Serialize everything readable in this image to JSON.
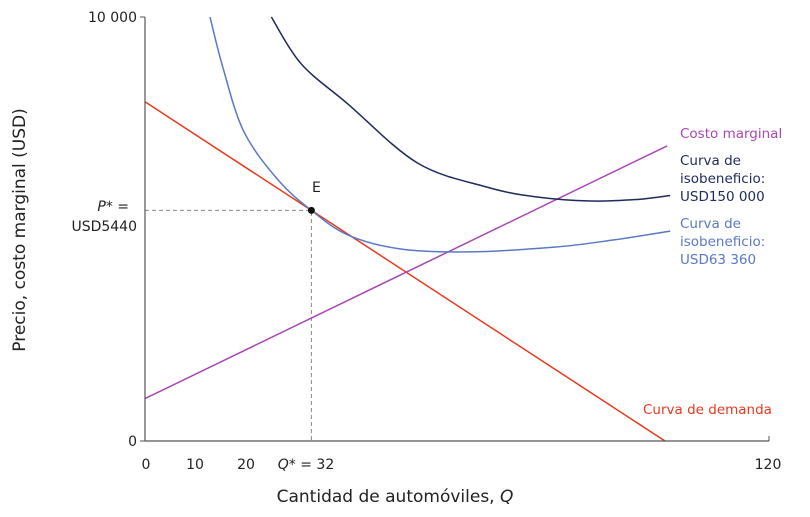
{
  "chart_data": {
    "type": "line",
    "xlabel": "Cantidad de automóviles, ",
    "xlabel_var": "Q",
    "ylabel": "Precio, costo marginal (USD)",
    "xlim": [
      0,
      120
    ],
    "ylim": [
      0,
      10000
    ],
    "x_ticks": [
      "0",
      "10",
      "20",
      "120"
    ],
    "x_tick_values": [
      0,
      10,
      20,
      120
    ],
    "y_ticks": [
      "10 000",
      "0"
    ],
    "y_tick_values": [
      10000,
      0
    ],
    "grid": false,
    "equilibrium": {
      "label": "E",
      "q": 32,
      "p": 5440,
      "q_label_var": "Q",
      "q_label_rest": "* = 32",
      "p_label_var": "P",
      "p_label_rest": "* =",
      "p_label_value": "USD5440"
    },
    "series": [
      {
        "name": "Curva de demanda",
        "color": "#e8391e",
        "x": [
          0,
          100
        ],
        "y": [
          8000,
          0
        ]
      },
      {
        "name": "Costo marginal",
        "color": "#a947b3",
        "x": [
          0,
          100.4
        ],
        "y": [
          1000,
          6960
        ]
      },
      {
        "name": "Curva de isobeneficio: USD150 000",
        "label_lines": [
          "Curva de",
          "isobeneficio:",
          "USD150 000"
        ],
        "color": "#1f2a5c",
        "x": [
          24.3,
          30,
          39,
          52.4,
          65.7,
          75,
          85.7,
          95,
          101
        ],
        "y": [
          10000,
          8900,
          7950,
          6557,
          5990,
          5760,
          5660,
          5700,
          5790
        ]
      },
      {
        "name": "Curva de isobeneficio: USD63 360",
        "label_lines": [
          "Curva de",
          "isobeneficio:",
          "USD63 360"
        ],
        "color": "#5a78c6",
        "x": [
          12.5,
          15,
          19,
          25.6,
          32,
          39,
          49,
          62,
          79,
          90,
          101
        ],
        "y": [
          10000,
          8800,
          7300,
          6155,
          5440,
          4860,
          4530,
          4460,
          4575,
          4740,
          4950
        ]
      }
    ]
  }
}
